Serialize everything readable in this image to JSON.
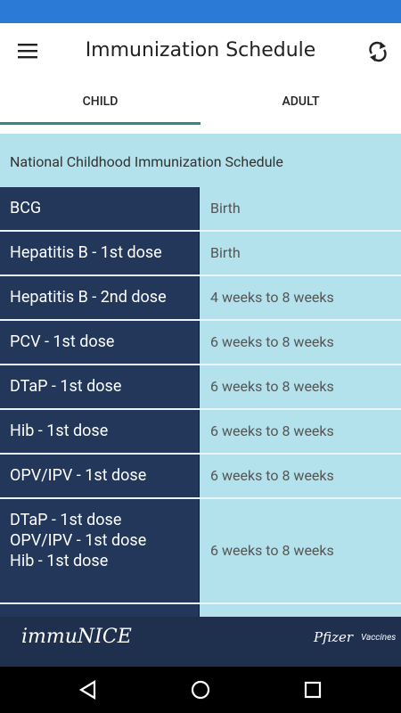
{
  "header": {
    "title": "Immunization Schedule"
  },
  "tabs": [
    "CHILD",
    "ADULT"
  ],
  "table": {
    "caption": "National Childhood Immunization Schedule",
    "rows": [
      {
        "vaccine": [
          "BCG"
        ],
        "age": "Birth"
      },
      {
        "vaccine": [
          "Hepatitis B - 1st dose"
        ],
        "age": "Birth"
      },
      {
        "vaccine": [
          "Hepatitis B - 2nd dose"
        ],
        "age": "4 weeks to 8 weeks"
      },
      {
        "vaccine": [
          "PCV - 1st dose"
        ],
        "age": "6 weeks to 8 weeks"
      },
      {
        "vaccine": [
          "DTaP - 1st dose"
        ],
        "age": "6 weeks to 8 weeks"
      },
      {
        "vaccine": [
          "Hib - 1st dose"
        ],
        "age": "6 weeks to 8 weeks"
      },
      {
        "vaccine": [
          "OPV/IPV - 1st dose"
        ],
        "age": "6 weeks to 8 weeks"
      },
      {
        "vaccine": [
          "DTaP - 1st dose",
          "OPV/IPV - 1st dose",
          "Hib - 1st dose"
        ],
        "age": "6 weeks to 8 weeks"
      }
    ]
  },
  "footer": {
    "brand": "immuNICE",
    "sponsor": "Pfizer",
    "sponsor_unit": "Vaccines"
  }
}
